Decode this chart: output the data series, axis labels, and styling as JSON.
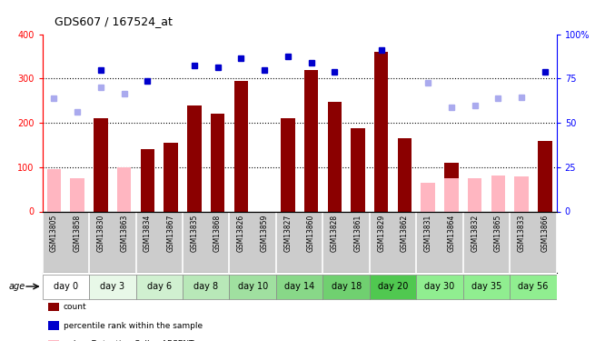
{
  "title": "GDS607 / 167524_at",
  "samples": [
    "GSM13805",
    "GSM13858",
    "GSM13830",
    "GSM13863",
    "GSM13834",
    "GSM13867",
    "GSM13835",
    "GSM13868",
    "GSM13826",
    "GSM13859",
    "GSM13827",
    "GSM13860",
    "GSM13828",
    "GSM13861",
    "GSM13829",
    "GSM13862",
    "GSM13831",
    "GSM13864",
    "GSM13832",
    "GSM13865",
    "GSM13833",
    "GSM13866"
  ],
  "day_groups": [
    {
      "label": "day 0",
      "indices": [
        0,
        1
      ],
      "color": "#ffffff"
    },
    {
      "label": "day 3",
      "indices": [
        2,
        3
      ],
      "color": "#e8f8e8"
    },
    {
      "label": "day 6",
      "indices": [
        4,
        5
      ],
      "color": "#d0f0d0"
    },
    {
      "label": "day 8",
      "indices": [
        6,
        7
      ],
      "color": "#b8e8b8"
    },
    {
      "label": "day 10",
      "indices": [
        8,
        9
      ],
      "color": "#a0e0a0"
    },
    {
      "label": "day 14",
      "indices": [
        10,
        11
      ],
      "color": "#88d888"
    },
    {
      "label": "day 18",
      "indices": [
        12,
        13
      ],
      "color": "#70d070"
    },
    {
      "label": "day 20",
      "indices": [
        14,
        15
      ],
      "color": "#50c850"
    },
    {
      "label": "day 30",
      "indices": [
        16,
        17
      ],
      "color": "#90EE90"
    },
    {
      "label": "day 35",
      "indices": [
        18,
        19
      ],
      "color": "#90EE90"
    },
    {
      "label": "day 56",
      "indices": [
        20,
        21
      ],
      "color": "#90EE90"
    }
  ],
  "count_values": [
    null,
    null,
    210,
    null,
    140,
    155,
    240,
    220,
    295,
    null,
    210,
    320,
    248,
    188,
    360,
    165,
    null,
    110,
    null,
    null,
    null,
    158
  ],
  "absent_values": [
    95,
    75,
    null,
    100,
    null,
    null,
    null,
    null,
    null,
    null,
    null,
    null,
    null,
    null,
    null,
    null,
    65,
    75,
    75,
    82,
    80,
    null
  ],
  "percentile_present": [
    null,
    null,
    320,
    null,
    295,
    null,
    330,
    325,
    345,
    320,
    350,
    335,
    315,
    null,
    365,
    null,
    null,
    null,
    null,
    null,
    null,
    315
  ],
  "percentile_absent": [
    255,
    225,
    280,
    265,
    null,
    null,
    null,
    null,
    null,
    null,
    null,
    null,
    null,
    null,
    null,
    null,
    290,
    235,
    240,
    255,
    258,
    null
  ],
  "ylim": [
    0,
    400
  ],
  "y2lim": [
    0,
    100
  ],
  "yticks_left": [
    0,
    100,
    200,
    300,
    400
  ],
  "yticks_right": [
    0,
    25,
    50,
    75,
    100
  ],
  "ytick_labels_right": [
    "0",
    "25",
    "50",
    "75",
    "100%"
  ],
  "bar_color_dark": "#8B0000",
  "bar_color_absent": "#FFB6C1",
  "dot_color_present": "#0000CC",
  "dot_color_absent": "#aaaaee",
  "sample_bg": "#cccccc"
}
